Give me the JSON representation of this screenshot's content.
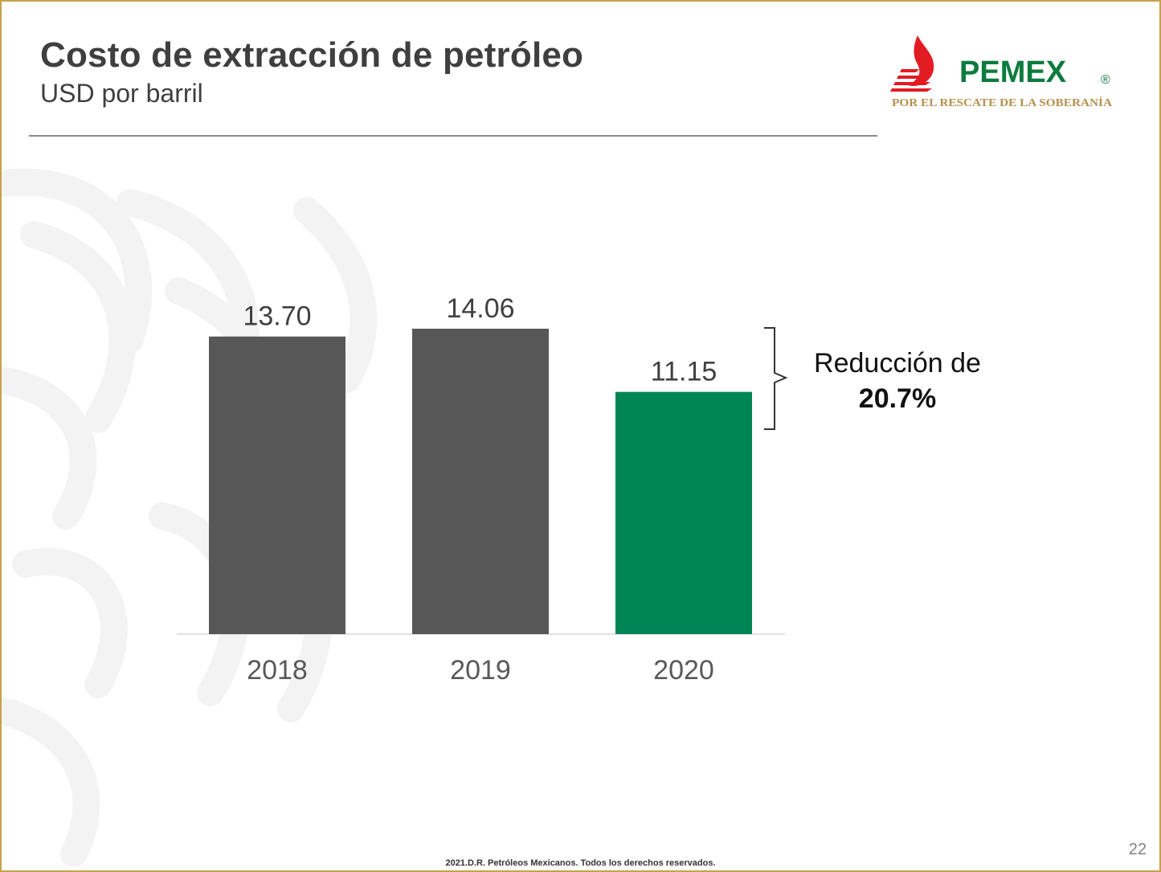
{
  "slide": {
    "title": "Costo de extracción de petróleo",
    "subtitle": "USD por barril",
    "page_number": "22",
    "footer": "2021.D.R.  Petróleos  Mexicanos.  Todos los derechos  reservados."
  },
  "logo": {
    "brand": "PEMEX",
    "registered": "®",
    "tagline": "POR EL RESCATE DE LA SOBERANÍA",
    "colors": {
      "red": "#e31b23",
      "green": "#0b7c3e",
      "gold": "#b7904c"
    }
  },
  "annotation": {
    "line1": "Reducción de",
    "line2": "20.7%"
  },
  "chart_data": {
    "type": "bar",
    "categories": [
      "2018",
      "2019",
      "2020"
    ],
    "values": [
      13.7,
      14.06,
      11.15
    ],
    "value_labels": [
      "13.70",
      "14.06",
      "11.15"
    ],
    "bar_colors": [
      "#575757",
      "#575757",
      "#008556"
    ],
    "title": "Costo de extracción de petróleo",
    "subtitle": "USD por barril",
    "xlabel": "",
    "ylabel": "",
    "ylim": [
      0,
      14.06
    ],
    "grid": false,
    "legend": "none"
  }
}
